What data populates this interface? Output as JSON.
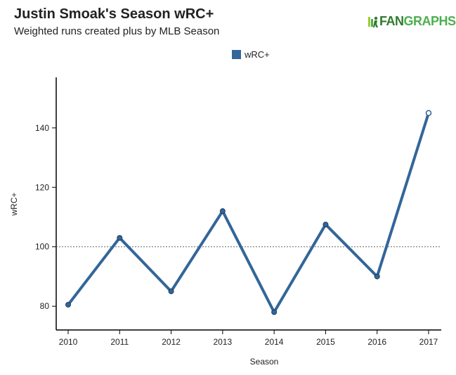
{
  "header": {
    "title": "Justin Smoak's Season wRC+",
    "subtitle": "Weighted runs created plus by MLB Season",
    "logo_text_fan": "FAN",
    "logo_text_graphs": "GRAPHS"
  },
  "colors": {
    "series": "#336699",
    "marker_outline": "#1f3d5c",
    "axis": "#000000",
    "reference_line": "#666666"
  },
  "chart_data": {
    "type": "line",
    "title": "Justin Smoak's Season wRC+",
    "subtitle": "Weighted runs created plus by MLB Season",
    "xlabel": "Season",
    "ylabel": "wRC+",
    "x": [
      "2010",
      "2011",
      "2012",
      "2013",
      "2014",
      "2015",
      "2016",
      "2017"
    ],
    "series": [
      {
        "name": "wRC+",
        "values": [
          80.5,
          103,
          85,
          112,
          78,
          107.5,
          90,
          145
        ]
      }
    ],
    "ylim": [
      72,
      157
    ],
    "yticks": [
      80,
      100,
      120,
      140
    ],
    "reference_line": 100,
    "legend": "top-center",
    "grid": false,
    "highlight_last_point": true
  }
}
